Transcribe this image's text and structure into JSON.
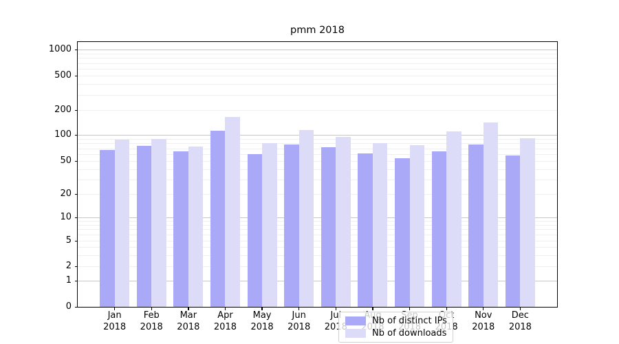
{
  "title": "pmm 2018",
  "colors": {
    "ips": "#a9a9f8",
    "downloads": "#dcdcf9",
    "grid_major": "#c6c6c6",
    "grid_minor": "#efefef",
    "spine": "#000000",
    "legend_border": "#cfcfcf"
  },
  "legend": {
    "items": [
      {
        "label": "Nb of distinct IPs",
        "series": "ips"
      },
      {
        "label": "Nb of downloads",
        "series": "downloads"
      }
    ]
  },
  "chart_data": {
    "type": "bar",
    "title": "pmm 2018",
    "categories": [
      "Jan 2018",
      "Feb 2018",
      "Mar 2018",
      "Apr 2018",
      "May 2018",
      "Jun 2018",
      "Jul 2018",
      "Aug 2018",
      "Sep 2018",
      "Oct 2018",
      "Nov 2018",
      "Dec 2018"
    ],
    "series": [
      {
        "name": "Nb of distinct IPs",
        "key": "ips",
        "values": [
          67,
          75,
          64,
          112,
          60,
          78,
          72,
          61,
          54,
          65,
          77,
          58
        ]
      },
      {
        "name": "Nb of downloads",
        "key": "downloads",
        "values": [
          88,
          89,
          74,
          166,
          80,
          114,
          94,
          80,
          76,
          111,
          141,
          92
        ]
      }
    ],
    "yscale": "symlog",
    "ylim": [
      0,
      1000
    ],
    "y_ticks": [
      0,
      1,
      2,
      5,
      10,
      20,
      50,
      100,
      200,
      500,
      1000
    ],
    "xlabel": "",
    "ylabel": "",
    "grid": true,
    "legend_position": "lower center"
  }
}
